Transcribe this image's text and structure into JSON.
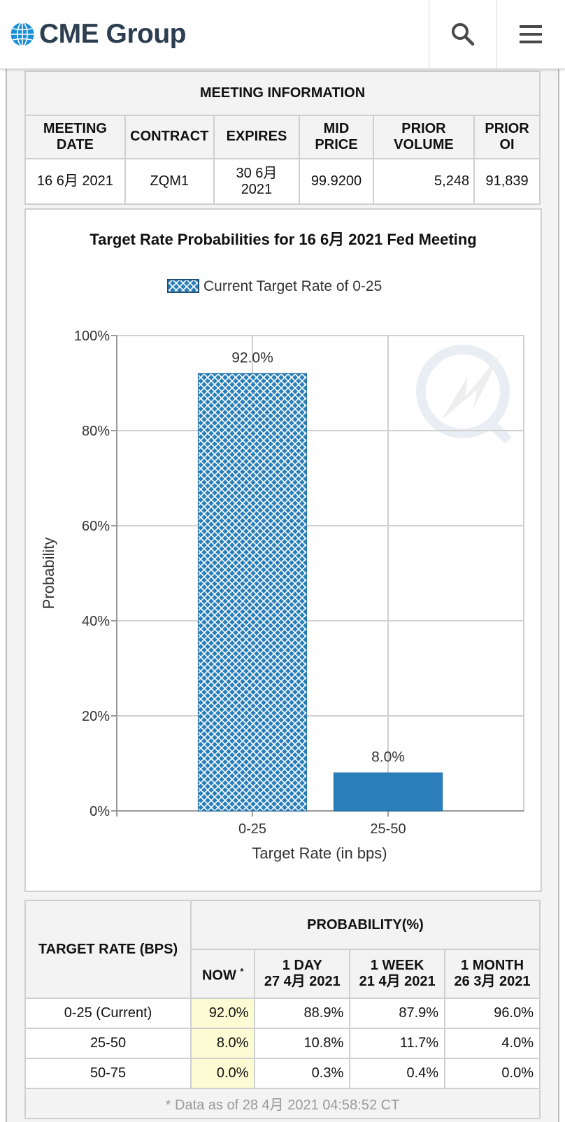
{
  "header": {
    "logo_text": "CME Group",
    "search_icon": "search-icon",
    "menu_icon": "hamburger-menu-icon"
  },
  "meeting_info": {
    "title": "MEETING INFORMATION",
    "columns": [
      "MEETING DATE",
      "CONTRACT",
      "EXPIRES",
      "MID PRICE",
      "PRIOR VOLUME",
      "PRIOR OI"
    ],
    "row": [
      "16 6月 2021",
      "ZQM1",
      "30 6月 2021",
      "99.9200",
      "5,248",
      "91,839"
    ]
  },
  "chart_data": {
    "type": "bar",
    "title": "Target Rate Probabilities for 16 6月 2021 Fed Meeting",
    "legend": "Current Target Rate of 0-25",
    "categories": [
      "0-25",
      "25-50"
    ],
    "values": [
      92.0,
      8.0
    ],
    "data_labels": [
      "92.0%",
      "8.0%"
    ],
    "xlabel": "Target Rate (in bps)",
    "ylabel": "Probability",
    "ylim": [
      0,
      100
    ],
    "yticks": [
      "0%",
      "20%",
      "40%",
      "60%",
      "80%",
      "100%"
    ],
    "grid": true,
    "legend_position": "top",
    "colors": {
      "bar": "#2a7fba",
      "hatch": "#ffffff",
      "grid": "#d0d0d0"
    }
  },
  "probability_table": {
    "rate_header": "TARGET RATE (BPS)",
    "prob_header": "PROBABILITY(%)",
    "columns": [
      {
        "line1": "NOW",
        "line2": "",
        "star": "*"
      },
      {
        "line1": "1 DAY",
        "line2": "27 4月 2021"
      },
      {
        "line1": "1 WEEK",
        "line2": "21 4月 2021"
      },
      {
        "line1": "1 MONTH",
        "line2": "26 3月 2021"
      }
    ],
    "rows": [
      {
        "rate": "0-25 (Current)",
        "now": "92.0%",
        "day": "88.9%",
        "week": "87.9%",
        "month": "96.0%"
      },
      {
        "rate": "25-50",
        "now": "8.0%",
        "day": "10.8%",
        "week": "11.7%",
        "month": "4.0%"
      },
      {
        "rate": "50-75",
        "now": "0.0%",
        "day": "0.3%",
        "week": "0.4%",
        "month": "0.0%"
      }
    ],
    "footnote": "* Data as of 28 4月 2021 04:58:52 CT"
  }
}
